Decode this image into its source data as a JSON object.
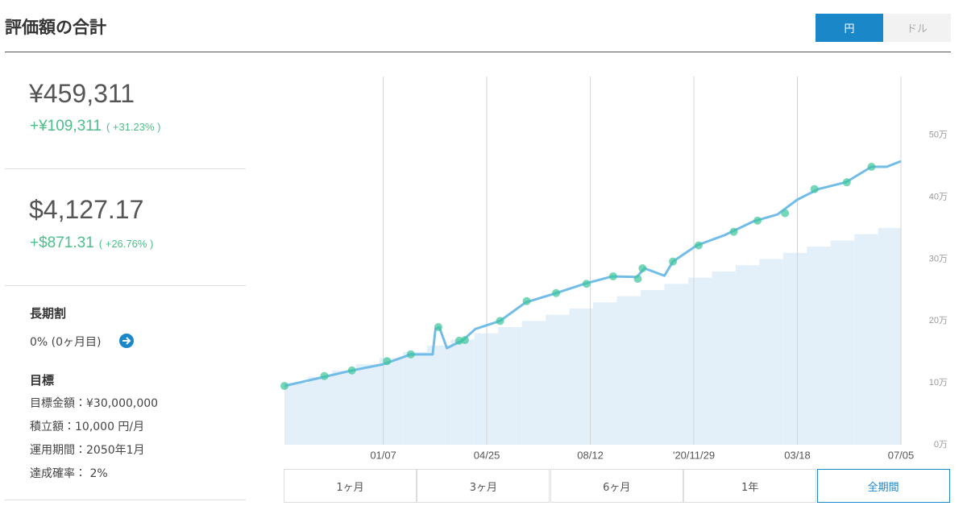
{
  "header": {
    "title": "評価額の合計",
    "currency_toggle": [
      "円",
      "ドル"
    ],
    "selected_currency": 0
  },
  "summary": {
    "yen": {
      "total": "¥459,311",
      "gain": "+¥109,311",
      "gain_pct": "( +31.23% )"
    },
    "usd": {
      "total": "$4,127.17",
      "gain": "+$871.31",
      "gain_pct": "( +26.76% )"
    },
    "discount": {
      "title": "長期割",
      "status": "0% (0ヶ月目)"
    },
    "goal": {
      "title": "目標",
      "items": [
        "目標金額：¥30,000,000",
        "積立額：10,000 円/月",
        "運用期間：2050年1月",
        "達成確率： 2%"
      ]
    }
  },
  "range_buttons": [
    "1ヶ月",
    "3ヶ月",
    "6ヶ月",
    "1年",
    "全期間"
  ],
  "selected_range": 4,
  "chart_data": {
    "type": "line",
    "xlim": [
      0,
      649
    ],
    "xticks": [
      {
        "value": 104,
        "label": "01/07"
      },
      {
        "value": 213,
        "label": "04/25"
      },
      {
        "value": 322,
        "label": "08/12"
      },
      {
        "value": 431,
        "label": "'20/11/29"
      },
      {
        "value": 540,
        "label": "03/18"
      },
      {
        "value": 649,
        "label": "07/05"
      }
    ],
    "ylim": [
      0,
      600000
    ],
    "yticks": [
      {
        "value": 0,
        "label": "0万"
      },
      {
        "value": 100000,
        "label": "10万"
      },
      {
        "value": 200000,
        "label": "20万"
      },
      {
        "value": 300000,
        "label": "30万"
      },
      {
        "value": 400000,
        "label": "40万"
      },
      {
        "value": 500000,
        "label": "50万"
      }
    ],
    "grid": "x",
    "series": [
      {
        "style": "area-step",
        "color": "#e3f0f9",
        "x": [
          0,
          25,
          50,
          75,
          100,
          125,
          150,
          175,
          200,
          225,
          250,
          275,
          300,
          325,
          350,
          375,
          400,
          425,
          450,
          475,
          500,
          525,
          550,
          575,
          600,
          625
        ],
        "values": [
          100000,
          110000,
          120000,
          130000,
          140000,
          150000,
          160000,
          170000,
          180000,
          190000,
          200000,
          210000,
          220000,
          230000,
          240000,
          250000,
          260000,
          270000,
          280000,
          290000,
          300000,
          310000,
          320000,
          330000,
          340000,
          350000
        ]
      },
      {
        "style": "line",
        "color": "#72bde8",
        "x": [
          0,
          40,
          71,
          104,
          133,
          156,
          159,
          163,
          171,
          188,
          201,
          227,
          254,
          286,
          316,
          345,
          371,
          379,
          400,
          409,
          434,
          464,
          494,
          519,
          540,
          562,
          591,
          618,
          634,
          649
        ],
        "values": [
          95000,
          109000,
          120000,
          130000,
          146000,
          146000,
          187000,
          190000,
          156000,
          169000,
          187000,
          200000,
          230000,
          245000,
          260000,
          272000,
          271000,
          285000,
          273000,
          296000,
          322000,
          339000,
          361000,
          372000,
          396000,
          413000,
          424000,
          449000,
          449000,
          458000
        ]
      },
      {
        "style": "markers",
        "color": "#3cc49a",
        "x": [
          0,
          42,
          71,
          108,
          133,
          162,
          184,
          190,
          227,
          255,
          286,
          318,
          346,
          372,
          377,
          409,
          436,
          473,
          498,
          527,
          558,
          592,
          618
        ],
        "values": [
          95000,
          111000,
          120000,
          135000,
          146000,
          190000,
          168000,
          169000,
          200000,
          232000,
          245000,
          260000,
          272000,
          268000,
          285000,
          296000,
          322000,
          344000,
          362000,
          374000,
          413000,
          424000,
          449000
        ]
      }
    ]
  }
}
